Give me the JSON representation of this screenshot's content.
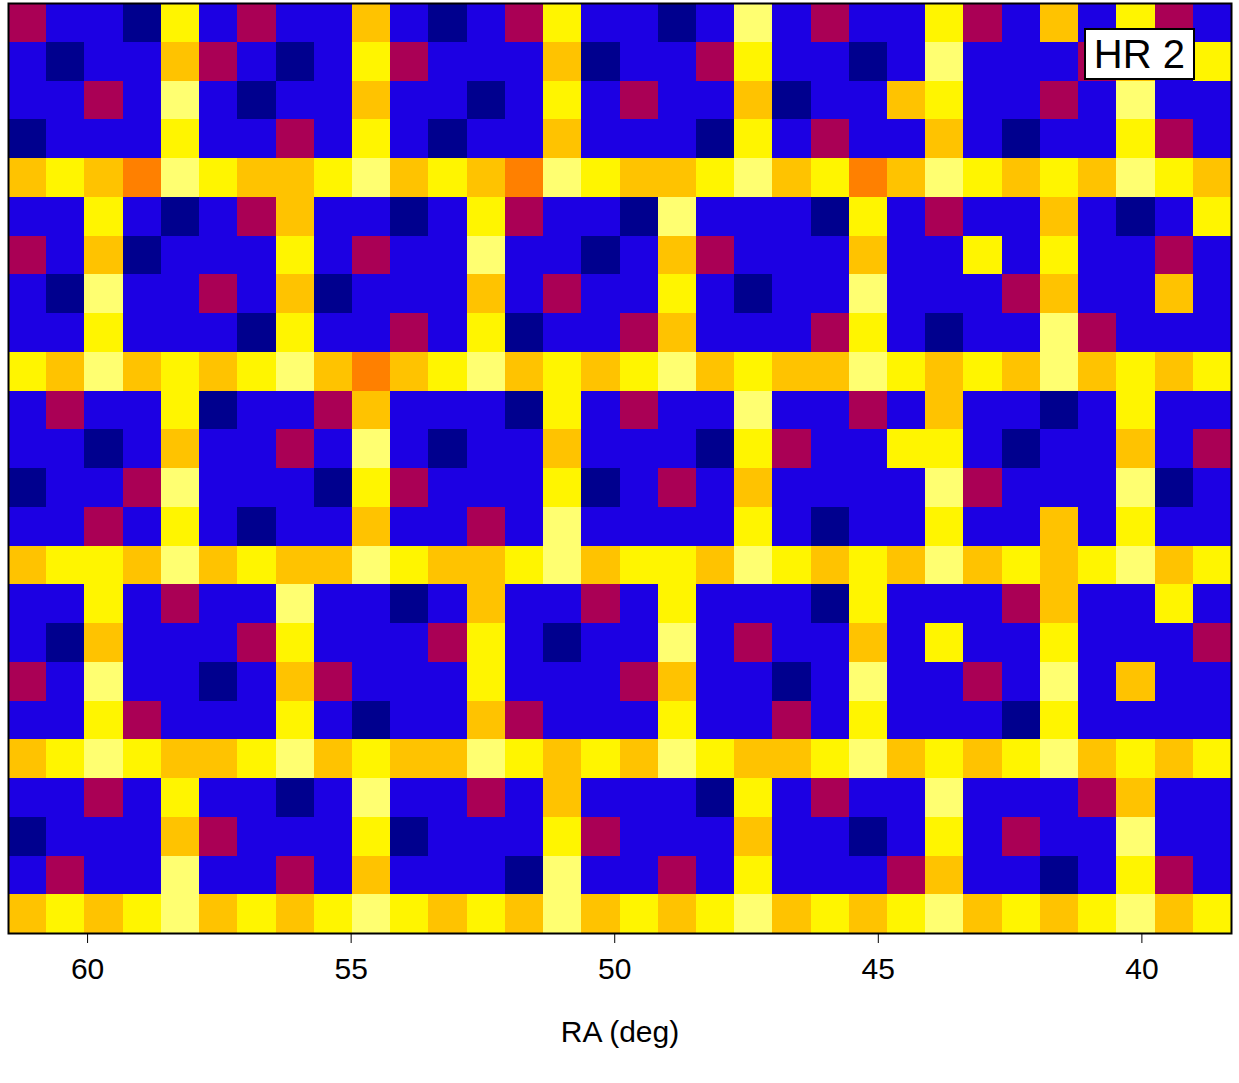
{
  "chart_data": {
    "type": "heatmap",
    "x_label": "RA (deg)",
    "annotations": [
      "HR 2"
    ],
    "xlim": [
      61.5,
      38.3
    ],
    "xticks": [
      60,
      55,
      50,
      45,
      40
    ],
    "tick_labels": "x",
    "color_domain": [
      0,
      9
    ],
    "ra_edges": [
      61.5,
      60.775,
      60.05,
      59.325,
      58.6,
      57.875,
      57.15,
      56.425,
      55.7,
      54.975,
      54.25,
      53.525,
      52.8,
      52.075,
      51.35,
      50.625,
      49.9,
      49.175,
      48.45,
      47.725,
      47.0,
      46.275,
      45.55,
      44.825,
      44.1,
      43.375,
      42.65,
      41.925,
      41.2,
      40.475,
      39.75,
      39.025,
      38.3
    ],
    "cells": [
      [
        3,
        2,
        2,
        1,
        7,
        2,
        3,
        2,
        2,
        6,
        2,
        1,
        2,
        3,
        7,
        2,
        2,
        1,
        2,
        8,
        2,
        3,
        2,
        2,
        7,
        3,
        2,
        6,
        2,
        7,
        3,
        2
      ],
      [
        2,
        1,
        2,
        2,
        6,
        3,
        2,
        1,
        2,
        7,
        3,
        2,
        2,
        2,
        6,
        1,
        2,
        2,
        3,
        7,
        2,
        2,
        1,
        2,
        8,
        2,
        2,
        2,
        3,
        6,
        2,
        7
      ],
      [
        2,
        2,
        3,
        2,
        8,
        2,
        1,
        2,
        2,
        6,
        2,
        2,
        1,
        2,
        7,
        2,
        3,
        2,
        2,
        6,
        1,
        2,
        2,
        6,
        7,
        2,
        2,
        3,
        2,
        8,
        2,
        2
      ],
      [
        1,
        2,
        2,
        2,
        7,
        2,
        2,
        3,
        2,
        7,
        2,
        1,
        2,
        2,
        6,
        2,
        2,
        2,
        1,
        7,
        2,
        3,
        2,
        2,
        6,
        2,
        1,
        2,
        2,
        7,
        3,
        2
      ],
      [
        6,
        7,
        6,
        5,
        8,
        7,
        6,
        6,
        7,
        8,
        6,
        7,
        6,
        5,
        8,
        7,
        6,
        6,
        7,
        8,
        6,
        7,
        5,
        6,
        8,
        7,
        6,
        7,
        6,
        8,
        7,
        6
      ],
      [
        2,
        2,
        7,
        2,
        1,
        2,
        3,
        6,
        2,
        2,
        1,
        2,
        7,
        3,
        2,
        2,
        1,
        8,
        2,
        2,
        2,
        1,
        7,
        2,
        3,
        2,
        2,
        6,
        2,
        1,
        2,
        7
      ],
      [
        3,
        2,
        6,
        1,
        2,
        2,
        2,
        7,
        2,
        3,
        2,
        2,
        8,
        2,
        2,
        1,
        2,
        6,
        3,
        2,
        2,
        2,
        6,
        2,
        2,
        7,
        2,
        7,
        2,
        2,
        3,
        2
      ],
      [
        2,
        1,
        8,
        2,
        2,
        3,
        2,
        6,
        1,
        2,
        2,
        2,
        6,
        2,
        3,
        2,
        2,
        7,
        2,
        1,
        2,
        2,
        8,
        2,
        2,
        2,
        3,
        6,
        2,
        2,
        6,
        2
      ],
      [
        2,
        2,
        7,
        2,
        2,
        2,
        1,
        7,
        2,
        2,
        3,
        2,
        7,
        1,
        2,
        2,
        3,
        6,
        2,
        2,
        2,
        3,
        7,
        2,
        1,
        2,
        2,
        8,
        3,
        2,
        2,
        2
      ],
      [
        7,
        6,
        8,
        6,
        7,
        6,
        7,
        8,
        6,
        5,
        6,
        7,
        8,
        6,
        7,
        6,
        7,
        8,
        6,
        7,
        6,
        6,
        8,
        7,
        6,
        7,
        6,
        8,
        6,
        7,
        6,
        7
      ],
      [
        2,
        3,
        2,
        2,
        7,
        1,
        2,
        2,
        3,
        6,
        2,
        2,
        2,
        1,
        7,
        2,
        3,
        2,
        2,
        8,
        2,
        2,
        3,
        2,
        6,
        2,
        2,
        1,
        2,
        7,
        2,
        2
      ],
      [
        2,
        2,
        1,
        2,
        6,
        2,
        2,
        3,
        2,
        8,
        2,
        1,
        2,
        2,
        6,
        2,
        2,
        2,
        1,
        7,
        3,
        2,
        2,
        7,
        7,
        2,
        1,
        2,
        2,
        6,
        2,
        3
      ],
      [
        1,
        2,
        2,
        3,
        8,
        2,
        2,
        2,
        1,
        7,
        3,
        2,
        2,
        2,
        7,
        1,
        2,
        3,
        2,
        6,
        2,
        2,
        2,
        2,
        8,
        3,
        2,
        2,
        2,
        8,
        1,
        2
      ],
      [
        2,
        2,
        3,
        2,
        7,
        2,
        1,
        2,
        2,
        6,
        2,
        2,
        3,
        2,
        8,
        2,
        2,
        2,
        2,
        7,
        2,
        1,
        2,
        2,
        7,
        2,
        2,
        6,
        2,
        7,
        2,
        2
      ],
      [
        6,
        7,
        7,
        6,
        8,
        6,
        7,
        6,
        6,
        8,
        7,
        6,
        6,
        7,
        8,
        6,
        7,
        7,
        6,
        8,
        7,
        6,
        7,
        6,
        8,
        6,
        7,
        6,
        7,
        8,
        6,
        7
      ],
      [
        2,
        2,
        7,
        2,
        3,
        2,
        2,
        8,
        2,
        2,
        1,
        2,
        6,
        2,
        2,
        3,
        2,
        7,
        2,
        2,
        2,
        1,
        7,
        2,
        2,
        2,
        3,
        6,
        2,
        2,
        7,
        2
      ],
      [
        2,
        1,
        6,
        2,
        2,
        2,
        3,
        7,
        2,
        2,
        2,
        3,
        7,
        2,
        1,
        2,
        2,
        8,
        2,
        3,
        2,
        2,
        6,
        2,
        7,
        2,
        2,
        7,
        2,
        2,
        2,
        3
      ],
      [
        3,
        2,
        8,
        2,
        2,
        1,
        2,
        6,
        3,
        2,
        2,
        2,
        7,
        2,
        2,
        2,
        3,
        6,
        2,
        2,
        1,
        2,
        8,
        2,
        2,
        3,
        2,
        8,
        2,
        6,
        2,
        2
      ],
      [
        2,
        2,
        7,
        3,
        2,
        2,
        2,
        7,
        2,
        1,
        2,
        2,
        6,
        3,
        2,
        2,
        2,
        7,
        2,
        2,
        3,
        2,
        7,
        2,
        2,
        2,
        1,
        7,
        2,
        2,
        2,
        2
      ],
      [
        6,
        7,
        8,
        7,
        6,
        6,
        7,
        8,
        6,
        7,
        6,
        6,
        8,
        7,
        6,
        7,
        6,
        8,
        7,
        6,
        6,
        7,
        8,
        6,
        7,
        6,
        7,
        8,
        6,
        7,
        6,
        7
      ],
      [
        2,
        2,
        3,
        2,
        7,
        2,
        2,
        1,
        2,
        8,
        2,
        2,
        3,
        2,
        6,
        2,
        2,
        2,
        1,
        7,
        2,
        3,
        2,
        2,
        8,
        2,
        2,
        2,
        3,
        6,
        2,
        2
      ],
      [
        1,
        2,
        2,
        2,
        6,
        3,
        2,
        2,
        2,
        7,
        1,
        2,
        2,
        2,
        7,
        3,
        2,
        2,
        2,
        6,
        2,
        2,
        1,
        2,
        7,
        2,
        3,
        2,
        2,
        8,
        2,
        2
      ],
      [
        2,
        3,
        2,
        2,
        8,
        2,
        2,
        3,
        2,
        6,
        2,
        2,
        2,
        1,
        8,
        2,
        2,
        3,
        2,
        7,
        2,
        2,
        2,
        3,
        6,
        2,
        2,
        1,
        2,
        7,
        3,
        2
      ],
      [
        6,
        7,
        6,
        7,
        8,
        6,
        7,
        6,
        7,
        8,
        7,
        6,
        7,
        6,
        8,
        6,
        7,
        6,
        7,
        8,
        6,
        7,
        6,
        7,
        8,
        6,
        7,
        6,
        7,
        8,
        6,
        7
      ]
    ]
  }
}
